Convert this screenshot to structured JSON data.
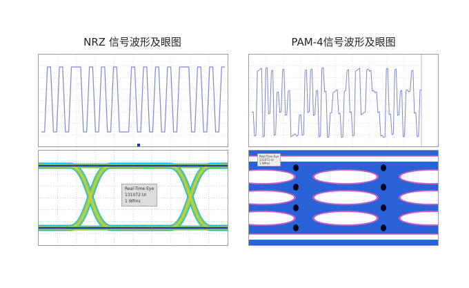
{
  "nrz": {
    "title": "NRZ 信号波形及眼图",
    "bits": [
      0,
      1,
      0,
      1,
      0,
      1,
      1,
      0,
      1,
      0,
      1,
      0,
      1,
      0,
      0,
      1,
      0,
      1,
      0,
      1,
      0,
      1,
      0,
      1,
      1,
      0,
      1,
      0,
      1,
      0,
      1
    ],
    "eye_label": [
      "Real-Time Eye",
      "131072 UI",
      "1 Wfms"
    ]
  },
  "pam4": {
    "title": "PAM-4信号波形及眼图",
    "symbols": [
      1,
      0,
      3,
      3,
      0,
      3,
      1,
      3,
      0,
      2,
      1,
      3,
      1,
      2,
      0,
      0,
      0,
      1,
      0,
      3,
      1,
      3,
      1,
      2,
      0,
      3,
      2,
      0,
      1,
      2,
      2,
      1,
      0,
      2,
      3,
      1,
      0,
      3,
      3,
      1,
      1,
      3,
      3,
      2,
      2,
      1,
      0,
      0,
      3,
      1,
      0,
      3,
      1,
      2,
      0,
      2,
      2,
      3,
      1,
      0,
      2
    ],
    "eye_label": [
      "Real-Time Eye",
      "131072 UI",
      "1 Wfms"
    ]
  },
  "colors": {
    "trace": "#7b86d6",
    "eye_core": "#1a2aa8",
    "eye_mid": "#18b0d8",
    "eye_hot": "#8fd24a",
    "pam_bg": "#2a62d8"
  }
}
